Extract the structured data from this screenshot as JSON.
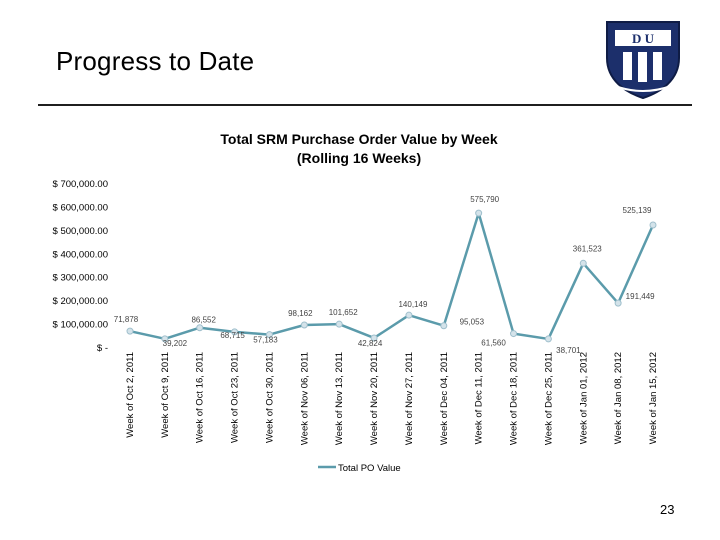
{
  "slide": {
    "title": "Progress to Date",
    "page_number": "23"
  },
  "chart_data": {
    "type": "line",
    "title_line1": "Total SRM Purchase Order Value by Week",
    "title_line2": "(Rolling 16 Weeks)",
    "categories": [
      "Week of Oct 2, 2011",
      "Week of Oct 9, 2011",
      "Week of Oct 16, 2011",
      "Week of Oct 23, 2011",
      "Week of Oct 30, 2011",
      "Week of Nov 06, 2011",
      "Week of Nov 13, 2011",
      "Week of Nov 20, 2011",
      "Week of Nov 27, 2011",
      "Week of Dec 04, 2011",
      "Week of Dec 11, 2011",
      "Week of Dec 18, 2011",
      "Week of Dec 25, 2011",
      "Week of Jan 01, 2012",
      "Week of Jan 08, 2012",
      "Week of Jan 15, 2012"
    ],
    "series": [
      {
        "name": "Total PO Value",
        "color": "#5b9bab",
        "values": [
          71878,
          39202,
          86552,
          68715,
          57183,
          98162,
          101652,
          42824,
          140149,
          95053,
          575790,
          61560,
          38701,
          361523,
          191449,
          525139
        ],
        "labels": [
          "71,878",
          "39,202",
          "86,552",
          "68,715",
          "57,183",
          "98,162",
          "101,652",
          "42,824",
          "140,149",
          "95,053",
          "575,790",
          "61,560",
          "38,701",
          "361,523",
          "191,449",
          "525,139"
        ]
      }
    ],
    "ylim": [
      0,
      700000
    ],
    "yticks": [
      0,
      100000,
      200000,
      300000,
      400000,
      500000,
      600000,
      700000
    ],
    "ytick_labels": [
      "$ -",
      "$ 100,000.00",
      "$ 200,000.00",
      "$ 300,000.00",
      "$ 400,000.00",
      "$ 500,000.00",
      "$ 600,000.00",
      "$ 700,000.00"
    ],
    "grid": false,
    "legend_position": "bottom"
  }
}
